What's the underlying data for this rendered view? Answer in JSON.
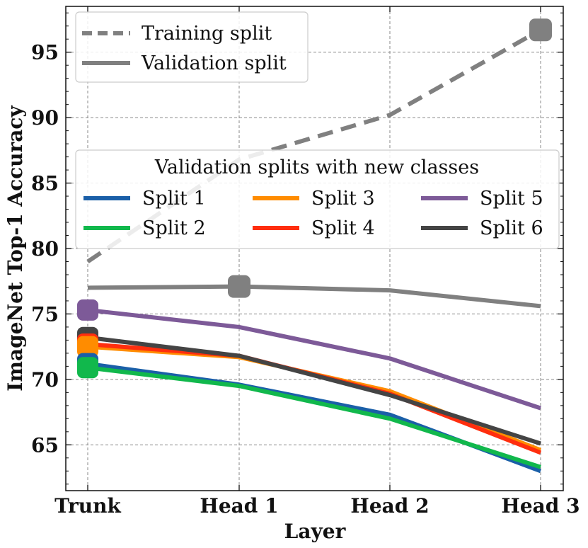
{
  "chart_data": {
    "type": "line",
    "categories": [
      "Trunk",
      "Head 1",
      "Head 2",
      "Head 3"
    ],
    "xlabel": "Layer",
    "ylabel": "ImageNet Top-1 Accuracy",
    "ylim": [
      61.5,
      98.5
    ],
    "yticks": [
      65,
      70,
      75,
      80,
      85,
      90,
      95
    ],
    "grid": true,
    "reference_series": [
      {
        "name": "Training split",
        "style": "dashed",
        "color": "#808080",
        "values": [
          79.0,
          86.8,
          90.2,
          96.7
        ],
        "marker_index": 3
      },
      {
        "name": "Validation split",
        "style": "solid",
        "color": "#808080",
        "values": [
          77.0,
          77.1,
          76.8,
          75.6
        ],
        "marker_index": 1
      }
    ],
    "legend_title": "Validation splits with new classes",
    "series": [
      {
        "name": "Split 1",
        "color": "#1a5fa8",
        "values": [
          71.2,
          69.6,
          67.3,
          63.0
        ]
      },
      {
        "name": "Split 2",
        "color": "#11b84c",
        "values": [
          70.9,
          69.5,
          67.0,
          63.3
        ]
      },
      {
        "name": "Split 3",
        "color": "#ff8c00",
        "values": [
          72.5,
          71.7,
          69.1,
          64.6
        ]
      },
      {
        "name": "Split 4",
        "color": "#ff2e0e",
        "values": [
          72.7,
          71.8,
          68.9,
          64.4
        ]
      },
      {
        "name": "Split 5",
        "color": "#7d5a98",
        "values": [
          75.3,
          74.0,
          71.6,
          67.8
        ]
      },
      {
        "name": "Split 6",
        "color": "#444444",
        "values": [
          73.2,
          71.8,
          68.8,
          65.1
        ]
      }
    ],
    "marker_index": 0,
    "legend_top": "upper-left",
    "legend_splits": "middle, three columns"
  }
}
